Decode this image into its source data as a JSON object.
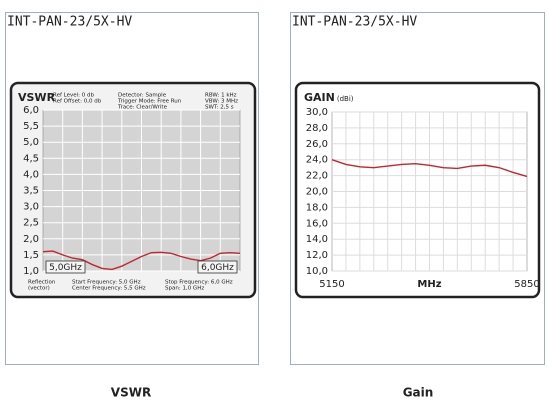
{
  "chart_data": [
    {
      "type": "line",
      "header": "INT-PAN-23/5X-HV",
      "title": "VSWR",
      "caption": "VSWR",
      "info": [
        [
          "Ref Level:   0   db",
          "Ref Offset: 0,0 db"
        ],
        [
          "Detector:        Sample",
          "Trigger Mode:  Free Run",
          "Trace:           Clear/Write"
        ],
        [
          "RBW: 1 kHz",
          "VBW: 3 MHz",
          "SWT: 2,5 s"
        ]
      ],
      "footer": [
        [
          "Reflection",
          "(vector)"
        ],
        [
          "Start Frequency:   5,0  GHz",
          "Center Frequency: 5,5 GHz"
        ],
        [
          "Stop Frequency: 6,0 GHz",
          "Span:              1,0 GHz"
        ]
      ],
      "markers": [
        "5,0GHz",
        "6,0GHz"
      ],
      "x": [
        5.0,
        5.05,
        5.1,
        5.15,
        5.2,
        5.25,
        5.3,
        5.35,
        5.4,
        5.45,
        5.5,
        5.55,
        5.6,
        5.65,
        5.7,
        5.75,
        5.8,
        5.85,
        5.9,
        5.95,
        6.0
      ],
      "series": [
        {
          "color": "#c0272d",
          "values": [
            1.6,
            1.62,
            1.5,
            1.4,
            1.35,
            1.2,
            1.08,
            1.05,
            1.15,
            1.3,
            1.45,
            1.57,
            1.58,
            1.55,
            1.45,
            1.37,
            1.32,
            1.4,
            1.55,
            1.57,
            1.55
          ]
        }
      ],
      "xlim": [
        5.0,
        6.0
      ],
      "ylim": [
        1.0,
        6.0
      ],
      "yticks": [
        {
          "value": 1.0,
          "label": "1,0"
        },
        {
          "value": 1.5,
          "label": "1,5"
        },
        {
          "value": 2.0,
          "label": "2,0"
        },
        {
          "value": 2.5,
          "label": "2,5"
        },
        {
          "value": 3.0,
          "label": "3,0"
        },
        {
          "value": 3.5,
          "label": "3,5"
        },
        {
          "value": 4.0,
          "label": "4,0"
        },
        {
          "value": 4.5,
          "label": "4,5"
        },
        {
          "value": 5.0,
          "label": "5,0"
        },
        {
          "value": 5.5,
          "label": "5,5"
        },
        {
          "value": 6.0,
          "label": "6,0"
        }
      ],
      "grid": true,
      "grid_color": "#ffffff",
      "plot_background": "#d4d4d4"
    },
    {
      "type": "line",
      "header": "INT-PAN-23/5X-HV",
      "title": "GAIN",
      "unit": "(dBi)",
      "caption": "Gain",
      "xlabel": "MHz",
      "x": [
        5150,
        5200,
        5250,
        5300,
        5350,
        5400,
        5450,
        5500,
        5550,
        5600,
        5650,
        5700,
        5750,
        5800,
        5850
      ],
      "series": [
        {
          "color": "#c0272d",
          "values": [
            24.0,
            23.4,
            23.1,
            23.0,
            23.2,
            23.4,
            23.5,
            23.3,
            23.0,
            22.9,
            23.2,
            23.3,
            23.0,
            22.4,
            21.9
          ]
        }
      ],
      "xlim": [
        5150,
        5850
      ],
      "xticks": [
        5150,
        5850
      ],
      "ylim": [
        10.0,
        30.0
      ],
      "yticks": [
        {
          "value": 10.0,
          "label": "10,0"
        },
        {
          "value": 12.0,
          "label": "12,0"
        },
        {
          "value": 14.0,
          "label": "14,0"
        },
        {
          "value": 16.0,
          "label": "16,0"
        },
        {
          "value": 18.0,
          "label": "18,0"
        },
        {
          "value": 20.0,
          "label": "20,0"
        },
        {
          "value": 22.0,
          "label": "22,0"
        },
        {
          "value": 24.0,
          "label": "24,0"
        },
        {
          "value": 26.0,
          "label": "26,0"
        },
        {
          "value": 28.0,
          "label": "28,0"
        },
        {
          "value": 30.0,
          "label": "30,0"
        }
      ],
      "grid": true,
      "grid_color": "#dddddd",
      "plot_background": "#ffffff"
    }
  ]
}
